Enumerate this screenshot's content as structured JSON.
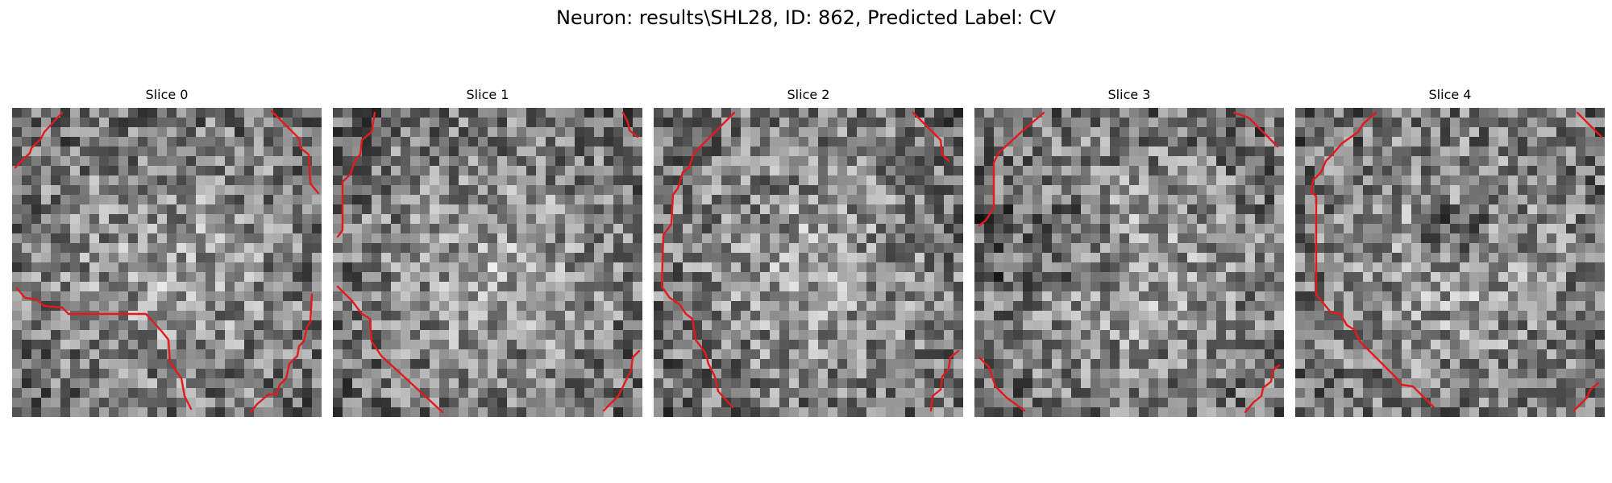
{
  "figure": {
    "suptitle": "Neuron: results\\SHL28, ID: 862, Predicted Label: CV"
  },
  "slices": [
    {
      "title": "Slice 0",
      "seed": 101
    },
    {
      "title": "Slice 1",
      "seed": 202
    },
    {
      "title": "Slice 2",
      "seed": 303
    },
    {
      "title": "Slice 3",
      "seed": 404
    },
    {
      "title": "Slice 4",
      "seed": 505
    }
  ],
  "colors": {
    "contour": "#e31a1c",
    "colormap": "gray"
  }
}
